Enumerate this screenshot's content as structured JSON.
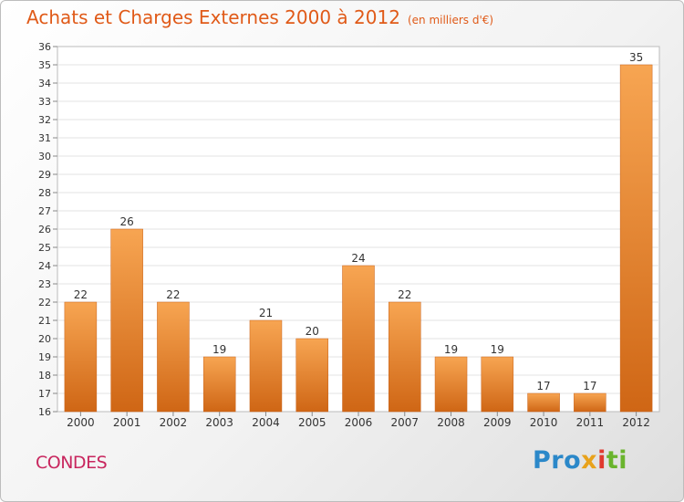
{
  "header": {
    "title": "Achats et Charges Externes 2000 à 2012",
    "subtitle": "(en milliers d'€)"
  },
  "footer": {
    "town": "CONDES",
    "logo_parts": [
      "Pro",
      "x",
      "i",
      "ti"
    ]
  },
  "colors": {
    "title": "#e05a18",
    "town": "#c8265e",
    "bar_top": "#f7a552",
    "bar_bottom": "#cf6615"
  },
  "chart_data": {
    "type": "bar",
    "title": "Achats et Charges Externes 2000 à 2012",
    "subtitle": "(en milliers d'€)",
    "categories": [
      "2000",
      "2001",
      "2002",
      "2003",
      "2004",
      "2005",
      "2006",
      "2007",
      "2008",
      "2009",
      "2010",
      "2011",
      "2012"
    ],
    "values": [
      22,
      26,
      22,
      19,
      21,
      20,
      24,
      22,
      19,
      19,
      17,
      17,
      35
    ],
    "ylim": [
      16,
      36
    ],
    "yticks": [
      16,
      17,
      18,
      19,
      20,
      21,
      22,
      23,
      24,
      25,
      26,
      27,
      28,
      29,
      30,
      31,
      32,
      33,
      34,
      35,
      36
    ],
    "grid": true,
    "legend": "none"
  }
}
